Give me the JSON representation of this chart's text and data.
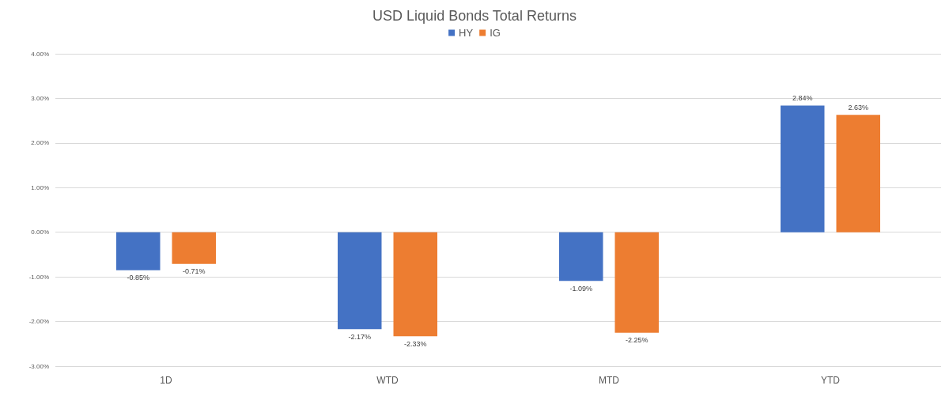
{
  "chart_data": {
    "type": "bar",
    "title": "USD Liquid Bonds Total Returns",
    "categories": [
      "1D",
      "WTD",
      "MTD",
      "YTD"
    ],
    "series": [
      {
        "name": "HY",
        "color": "#4472c4",
        "values": [
          -0.85,
          -2.17,
          -1.09,
          2.84
        ],
        "value_labels": [
          "-0.85%",
          "-2.17%",
          "-1.09%",
          "2.84%"
        ]
      },
      {
        "name": "IG",
        "color": "#ed7d31",
        "values": [
          -0.71,
          -2.33,
          -2.25,
          2.63
        ],
        "value_labels": [
          "-0.71%",
          "-2.33%",
          "-2.25%",
          "2.63%"
        ]
      }
    ],
    "ylim": [
      -3,
      4
    ],
    "yticks": [
      {
        "value": -3,
        "label": "-3.00%"
      },
      {
        "value": -2,
        "label": "-2.00%"
      },
      {
        "value": -1,
        "label": "-1.00%"
      },
      {
        "value": 0,
        "label": "0.00%"
      },
      {
        "value": 1,
        "label": "1.00%"
      },
      {
        "value": 2,
        "label": "2.00%"
      },
      {
        "value": 3,
        "label": "3.00%"
      },
      {
        "value": 4,
        "label": "4.00%"
      }
    ],
    "grid": "y",
    "legend": "top"
  }
}
